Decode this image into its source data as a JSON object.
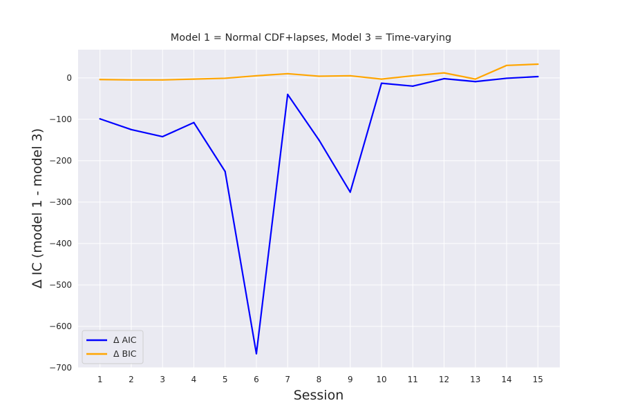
{
  "chart_data": {
    "type": "line",
    "title": "Model 1 = Normal CDF+lapses, Model 3 = Time-varying",
    "xlabel": "Session",
    "ylabel": "Δ IC (model 1 - model 3)",
    "x": [
      1,
      2,
      3,
      4,
      5,
      6,
      7,
      8,
      9,
      10,
      11,
      12,
      13,
      14,
      15
    ],
    "xlim": [
      0.3,
      15.7
    ],
    "ylim": [
      -700,
      68
    ],
    "yticks": [
      0,
      -100,
      -200,
      -300,
      -400,
      -500,
      -600,
      -700
    ],
    "ytick_labels": [
      "0",
      "−100",
      "−200",
      "−300",
      "−400",
      "−500",
      "−600",
      "−700"
    ],
    "grid": true,
    "background": "#eaeaf2",
    "legend_position": "lower-left",
    "series": [
      {
        "name": "Δ AIC",
        "color": "#0000ff",
        "values": [
          -99,
          -125,
          -142,
          -108,
          -226,
          -666,
          -40,
          -150,
          -276,
          -13,
          -20,
          -2,
          -9,
          -1,
          3
        ]
      },
      {
        "name": "Δ BIC",
        "color": "#ffa500",
        "values": [
          -4,
          -5,
          -5,
          -3,
          -1,
          5,
          10,
          4,
          5,
          -3,
          5,
          12,
          -3,
          30,
          33
        ]
      }
    ]
  }
}
